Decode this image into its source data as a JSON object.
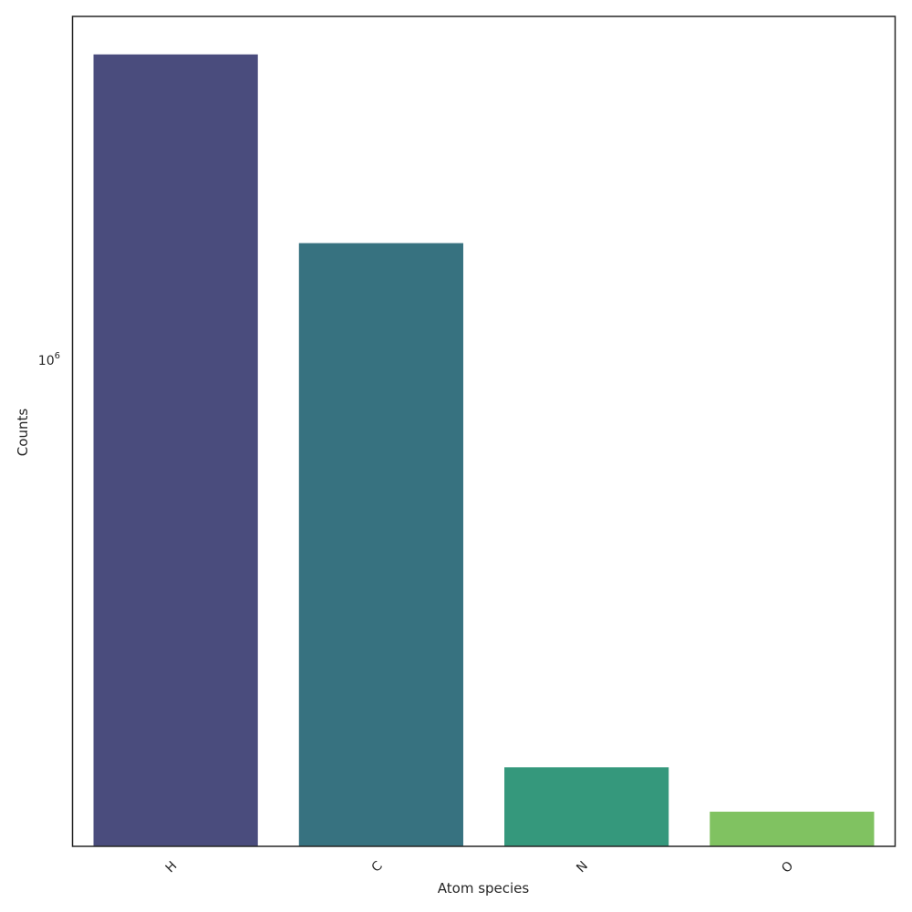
{
  "chart_data": {
    "type": "bar",
    "title": "",
    "xlabel": "Atom species",
    "ylabel": "Counts",
    "yscale": "log",
    "categories": [
      "H",
      "C",
      "N",
      "O"
    ],
    "values": [
      3000000,
      1520000,
      230000,
      196000
    ],
    "colors": [
      "#4a4c7d",
      "#377280",
      "#35987c",
      "#80c261"
    ],
    "ylim": [
      173000,
      3440000
    ],
    "yticks": [
      {
        "value": 1000000,
        "base": "10",
        "exp": "6"
      }
    ],
    "grid": false,
    "legend": "none"
  }
}
